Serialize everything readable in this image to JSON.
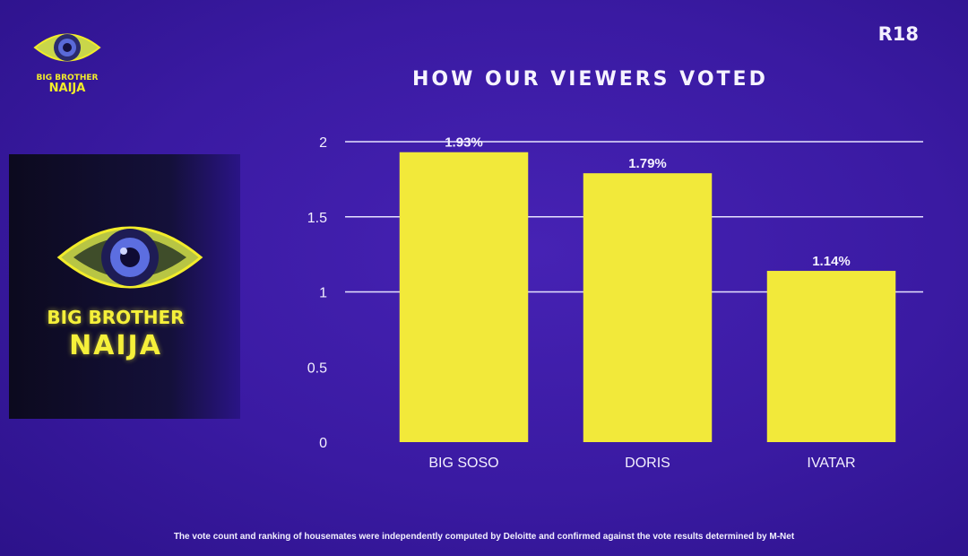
{
  "corner_logo": {
    "brand_top": "BIG BROTHER",
    "brand_bottom": "NAIJA",
    "icon": "eye-logo-icon"
  },
  "rating": "R18",
  "side_panel": {
    "brand_top": "BIG BROTHER",
    "brand_bottom": "NAIJA",
    "icon": "eye-logo-icon"
  },
  "footnote": "The vote count and ranking of housemates were independently computed by Deloitte and confirmed against the vote results determined by M-Net",
  "colors": {
    "background": "#3b1aa6",
    "bar": "#f2e93a",
    "text": "#f3f0ff",
    "accent": "#f2ec2a"
  },
  "chart_data": {
    "type": "bar",
    "title": "HOW OUR VIEWERS VOTED",
    "categories": [
      "BIG SOSO",
      "DORIS",
      "IVATAR"
    ],
    "values": [
      1.93,
      1.79,
      1.14
    ],
    "data_labels": [
      "1.93%",
      "1.79%",
      "1.14%"
    ],
    "ylim": [
      0,
      2
    ],
    "yticks": [
      "0",
      "0.5",
      "1",
      "1.5",
      "2"
    ],
    "gridlines": [
      1,
      1.5,
      2
    ],
    "xlabel": "",
    "ylabel": ""
  }
}
